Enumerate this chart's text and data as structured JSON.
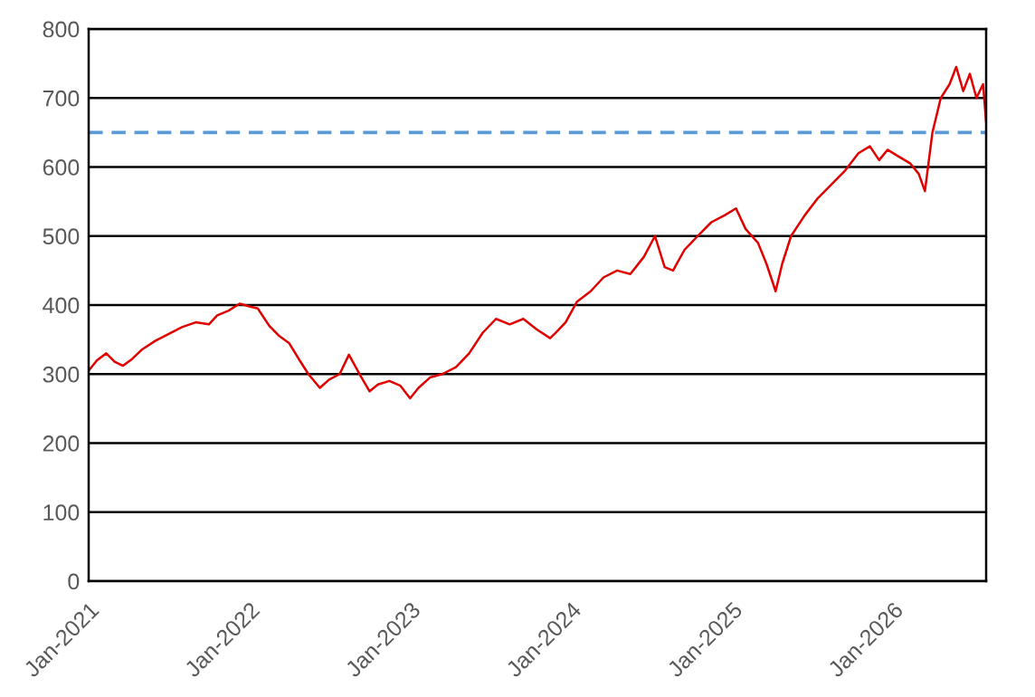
{
  "chart_data": {
    "type": "line",
    "x": [
      "2021-01-01",
      "2021-01-20",
      "2021-02-10",
      "2021-03-01",
      "2021-03-20",
      "2021-04-10",
      "2021-05-01",
      "2021-06-01",
      "2021-07-01",
      "2021-08-01",
      "2021-09-01",
      "2021-10-01",
      "2021-10-20",
      "2021-11-15",
      "2021-12-10",
      "2022-01-01",
      "2022-01-20",
      "2022-02-15",
      "2022-03-10",
      "2022-04-01",
      "2022-04-25",
      "2022-05-15",
      "2022-06-10",
      "2022-07-01",
      "2022-07-25",
      "2022-08-15",
      "2022-09-10",
      "2022-10-01",
      "2022-10-20",
      "2022-11-15",
      "2022-12-10",
      "2023-01-01",
      "2023-01-20",
      "2023-02-15",
      "2023-03-15",
      "2023-04-15",
      "2023-05-15",
      "2023-06-15",
      "2023-07-15",
      "2023-08-15",
      "2023-09-15",
      "2023-10-15",
      "2023-11-15",
      "2023-12-01",
      "2023-12-20",
      "2024-01-15",
      "2024-02-15",
      "2024-03-15",
      "2024-04-15",
      "2024-05-15",
      "2024-06-15",
      "2024-07-10",
      "2024-08-01",
      "2024-08-20",
      "2024-09-15",
      "2024-10-15",
      "2024-11-15",
      "2024-12-15",
      "2025-01-10",
      "2025-02-01",
      "2025-03-01",
      "2025-03-20",
      "2025-04-10",
      "2025-04-25",
      "2025-05-15",
      "2025-06-15",
      "2025-07-15",
      "2025-08-15",
      "2025-09-15",
      "2025-10-15",
      "2025-11-10",
      "2025-12-01",
      "2025-12-20",
      "2026-01-15",
      "2026-02-10",
      "2026-03-01",
      "2026-03-15",
      "2026-04-01",
      "2026-04-20",
      "2026-05-10",
      "2026-05-25",
      "2026-06-10",
      "2026-06-25",
      "2026-07-10",
      "2026-07-25",
      "2026-08-01"
    ],
    "series": [
      {
        "color": "#e00000",
        "values": [
          305,
          320,
          330,
          318,
          312,
          322,
          335,
          348,
          358,
          368,
          375,
          372,
          385,
          392,
          402,
          398,
          395,
          370,
          355,
          345,
          320,
          300,
          280,
          292,
          300,
          328,
          298,
          275,
          285,
          290,
          283,
          265,
          280,
          295,
          300,
          310,
          330,
          360,
          380,
          372,
          380,
          365,
          352,
          362,
          375,
          405,
          420,
          440,
          450,
          445,
          470,
          500,
          455,
          450,
          480,
          500,
          520,
          530,
          540,
          510,
          490,
          460,
          420,
          460,
          500,
          530,
          555,
          575,
          595,
          620,
          630,
          610,
          625,
          615,
          605,
          590,
          565,
          650,
          700,
          720,
          745,
          710,
          735,
          700,
          720,
          665
        ]
      }
    ],
    "xlim": [
      "2021-01-01",
      "2026-08-01"
    ],
    "xticks": [
      {
        "value": "2021-01-01",
        "label": "Jan-2021"
      },
      {
        "value": "2022-01-01",
        "label": "Jan-2022"
      },
      {
        "value": "2023-01-01",
        "label": "Jan-2023"
      },
      {
        "value": "2024-01-01",
        "label": "Jan-2024"
      },
      {
        "value": "2025-01-01",
        "label": "Jan-2025"
      },
      {
        "value": "2026-01-01",
        "label": "Jan-2026"
      }
    ],
    "ylim": [
      0,
      800
    ],
    "yticks": [
      0,
      100,
      200,
      300,
      400,
      500,
      600,
      700,
      800
    ],
    "grid": "y",
    "marker": "none",
    "line_style": "solid",
    "ref_lines": [
      {
        "axis": "y",
        "value": 650,
        "color": "#5b9bd5",
        "line_style": "dashed"
      }
    ]
  }
}
